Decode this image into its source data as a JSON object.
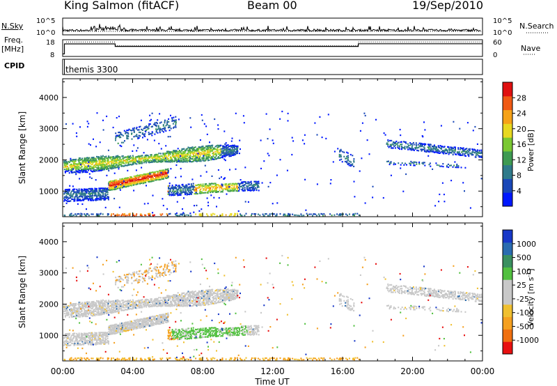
{
  "header": {
    "station": "King Salmon (fitACF)",
    "beam": "Beam 00",
    "date": "19/Sep/2010"
  },
  "side_labels": {
    "nsky": "N.Sky",
    "freq_line1": "Freq.",
    "freq_line2": "[MHz]",
    "cpid": "CPID",
    "nsearch": "N.Search",
    "nave": "Nave"
  },
  "cpid_name": "themis 3300",
  "chart_data": [
    {
      "type": "line",
      "name": "noise-panel",
      "left_ylabel": "N.Sky",
      "right_ylabel": "N.Search",
      "left_ticks": [
        "10^5",
        "10^0"
      ],
      "right_ticks": [
        "10^5",
        "10^0"
      ],
      "x_range": [
        0,
        24
      ],
      "description_series": [
        "N.Sky",
        "N.Search"
      ]
    },
    {
      "type": "line",
      "name": "frequency-panel",
      "left_ylabel": "Freq. [MHz]",
      "right_ylabel": "Nave",
      "left_ticks": [
        "18",
        "8"
      ],
      "right_ticks": [
        "60",
        "0"
      ],
      "left_range": [
        8,
        18
      ],
      "right_range": [
        0,
        60
      ],
      "x_range": [
        0,
        24
      ],
      "freq_steps": [
        {
          "t0": 0.0,
          "t1": 0.1,
          "f": 9.5
        },
        {
          "t0": 0.1,
          "t1": 3.0,
          "f": 15.5
        },
        {
          "t0": 3.0,
          "t1": 16.9,
          "f": 14.0
        },
        {
          "t0": 16.9,
          "t1": 24.0,
          "f": 15.6
        }
      ],
      "nave_steps": [
        {
          "t0": 0.2,
          "t1": 3.0,
          "n": 52
        },
        {
          "t0": 3.0,
          "t1": 16.9,
          "n": 39
        },
        {
          "t0": 16.9,
          "t1": 24.0,
          "n": 52
        }
      ]
    },
    {
      "type": "heatmap",
      "name": "power-panel",
      "ylabel": "Slant Range [km]",
      "yticks": [
        1000,
        2000,
        3000,
        4000
      ],
      "ylim": [
        180,
        4600
      ],
      "x_range": [
        0,
        24
      ],
      "colorbar_label": "Power [dB]",
      "colorbar_ticks": [
        "28",
        "24",
        "20",
        "16",
        "12",
        "8",
        "4"
      ],
      "colorbar_colors": [
        "#0018ff",
        "#1a48b8",
        "#2f7a8a",
        "#3e9a52",
        "#7ac832",
        "#e8d820",
        "#f6a218",
        "#f05a14",
        "#e01010"
      ]
    },
    {
      "type": "heatmap",
      "name": "velocity-panel",
      "ylabel": "Slant Range [km]",
      "yticks": [
        1000,
        2000,
        3000,
        4000
      ],
      "ylim": [
        180,
        4600
      ],
      "x_range": [
        0,
        24
      ],
      "colorbar_label": "Velocity [m s-1]",
      "colorbar_ticks": [
        "1000",
        "500",
        "100",
        "25",
        "-25",
        "-100",
        "-500",
        "-1000"
      ],
      "colorbar_colors": [
        "#1838c8",
        "#2a6cb0",
        "#3a9060",
        "#52c040",
        "#c8c8c8",
        "#c8c8c8",
        "#f0c030",
        "#f5a020",
        "#f07010",
        "#e81010"
      ]
    }
  ],
  "time_axis": {
    "ticks": [
      "00:00",
      "04:00",
      "08:00",
      "12:00",
      "16:00",
      "20:00",
      "00:00"
    ],
    "label": "Time UT"
  }
}
